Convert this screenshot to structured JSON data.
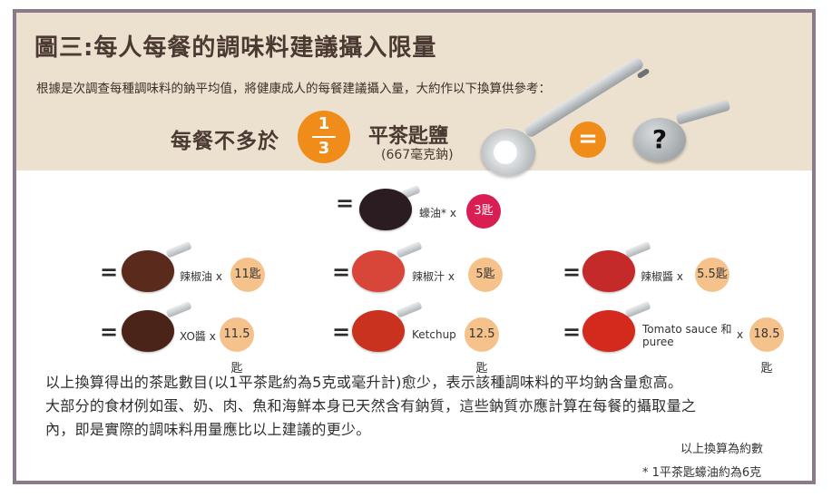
{
  "title": "圖三:每人每餐的調味料建議攝入限量",
  "subtitle": "根據是次調查每種調味料的鈉平均值，將健康成人的每餐建議攝入量，大約作以下換算供參考：",
  "limit": {
    "prefix": "每餐不多於",
    "numerator": "1",
    "denominator": "3",
    "unit": "平茶匙鹽",
    "sodium": "(667毫克鈉)",
    "equals": "=",
    "question": "?"
  },
  "equals_sign": "=",
  "condiments": [
    {
      "name": "蠔油* x",
      "amount": "3匙",
      "color": "#2a1c20",
      "highlight": true
    },
    {
      "name": "辣椒油 x",
      "amount": "11匙",
      "color": "#5a2a1c"
    },
    {
      "name": "辣椒汁 x",
      "amount": "5匙",
      "color": "#d8463a"
    },
    {
      "name": "辣椒醬 x",
      "amount": "5.5匙",
      "color": "#c42a2a"
    },
    {
      "name": "XO醬 x",
      "amount": "11.5匙",
      "color": "#4a2418"
    },
    {
      "name": "Ketchup",
      "amount": "12.5匙",
      "color": "#c8321e"
    },
    {
      "name": "Tomato sauce 和 puree",
      "name_line1": "Tomato sauce 和",
      "name_line2": "puree",
      "name_x": "x",
      "amount": "18.5匙",
      "color": "#d42a1e"
    }
  ],
  "notes": [
    "以上換算得出的茶匙數目(以1平茶匙約為5克或毫升計)愈少，表示該種調味料的平均鈉含量愈高。",
    "大部分的食材例如蛋、奶、肉、魚和海鮮本身已天然含有鈉質，這些鈉質亦應計算在每餐的攝取量之",
    "內，即是實際的調味料用量應比以上建議的更少。"
  ],
  "footnotes": {
    "approx": "以上換算為約數",
    "oyster": "* 1平茶匙蠔油約為6克"
  }
}
